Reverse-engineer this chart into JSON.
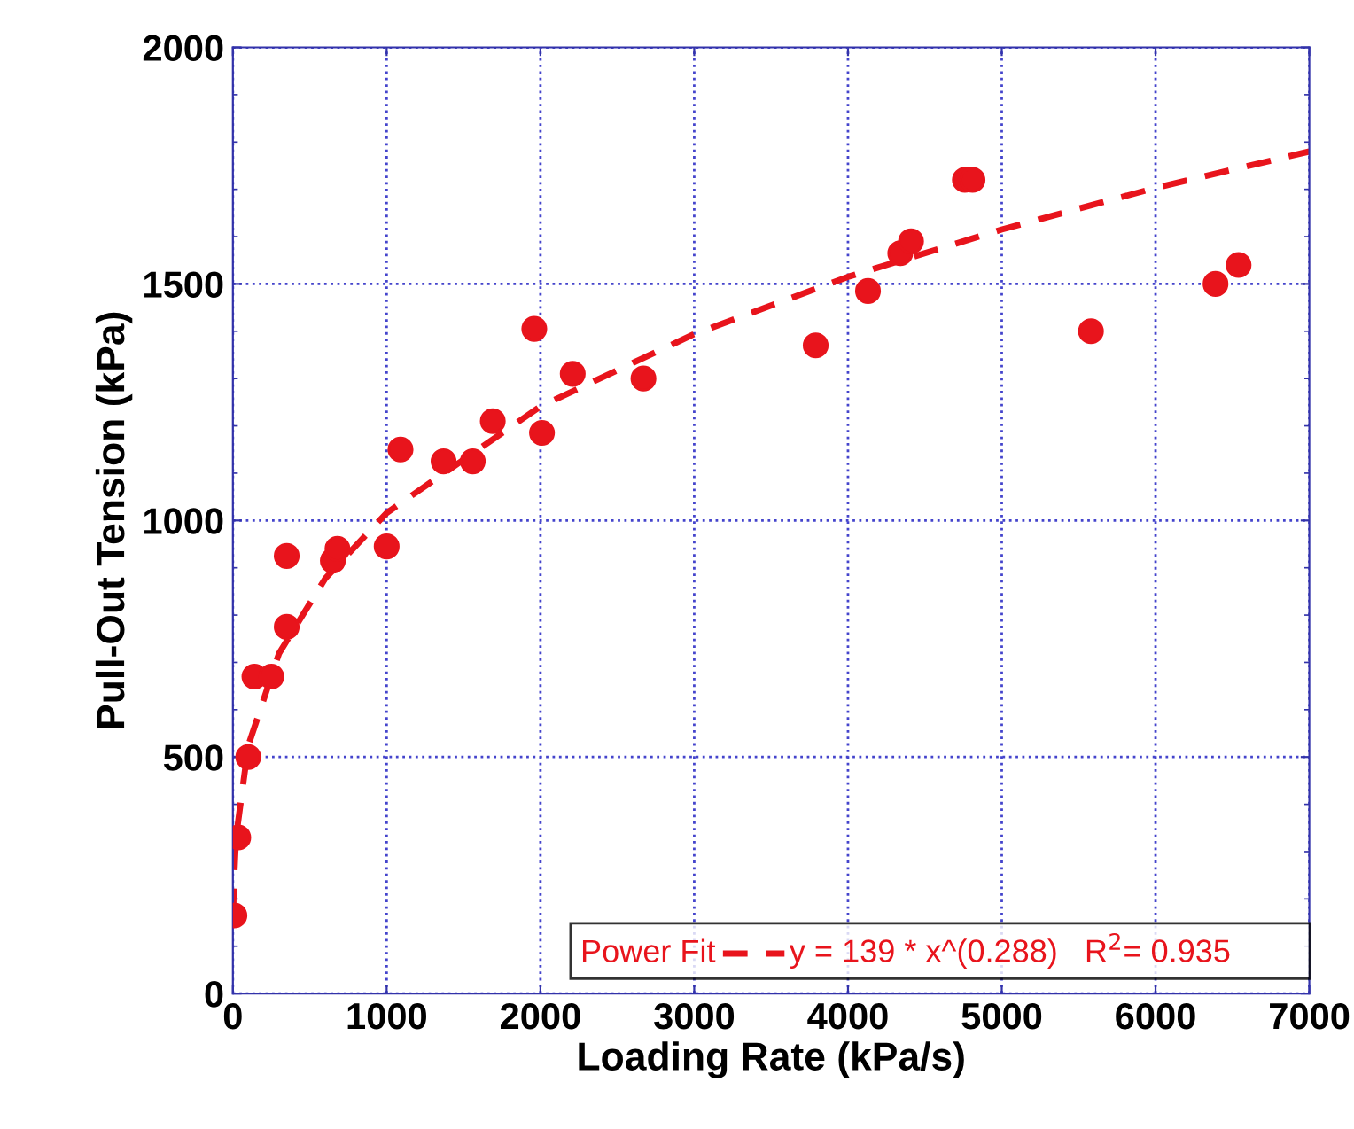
{
  "chart_data": {
    "type": "scatter",
    "xlabel": "Loading Rate (kPa/s)",
    "ylabel": "Pull-Out Tension (kPa)",
    "xlim": [
      0,
      7000
    ],
    "xticks": [
      0,
      1000,
      2000,
      3000,
      4000,
      5000,
      6000,
      7000
    ],
    "ylim": [
      0,
      2000
    ],
    "yticks": [
      0,
      500,
      1000,
      1500,
      2000
    ],
    "grid": true,
    "legend": "bottom left",
    "marker": "circle",
    "annotations": [
      "y = 139 * x^(0.288)   R$^{2}$= 0.935"
    ],
    "series": [
      {
        "color": "#e8141c",
        "x": [
          10,
          35,
          100,
          140,
          250,
          350,
          350,
          650,
          680,
          1000,
          1090,
          1370,
          1560,
          1690,
          1960,
          2010,
          2210,
          2670,
          3790,
          4130,
          4340,
          4410,
          4760,
          4810,
          5580,
          6390,
          6540
        ],
        "values": [
          165,
          330,
          500,
          670,
          670,
          775,
          925,
          915,
          940,
          945,
          1150,
          1125,
          1125,
          1210,
          1405,
          1185,
          1310,
          1300,
          1370,
          1485,
          1565,
          1590,
          1720,
          1720,
          1400,
          1500,
          1540
        ]
      },
      {
        "type": "line",
        "name": "Power Fit",
        "color": "#e8141c",
        "line_style": "dashed",
        "marker": "none",
        "x": [
          2,
          5,
          20,
          100,
          300,
          600,
          1000,
          2000,
          3000,
          4000,
          5000,
          6000,
          7000
        ],
        "values": [
          170,
          221,
          329,
          524,
          719,
          877,
          1016,
          1241,
          1394,
          1515,
          1615,
          1703,
          1780
        ]
      }
    ]
  }
}
